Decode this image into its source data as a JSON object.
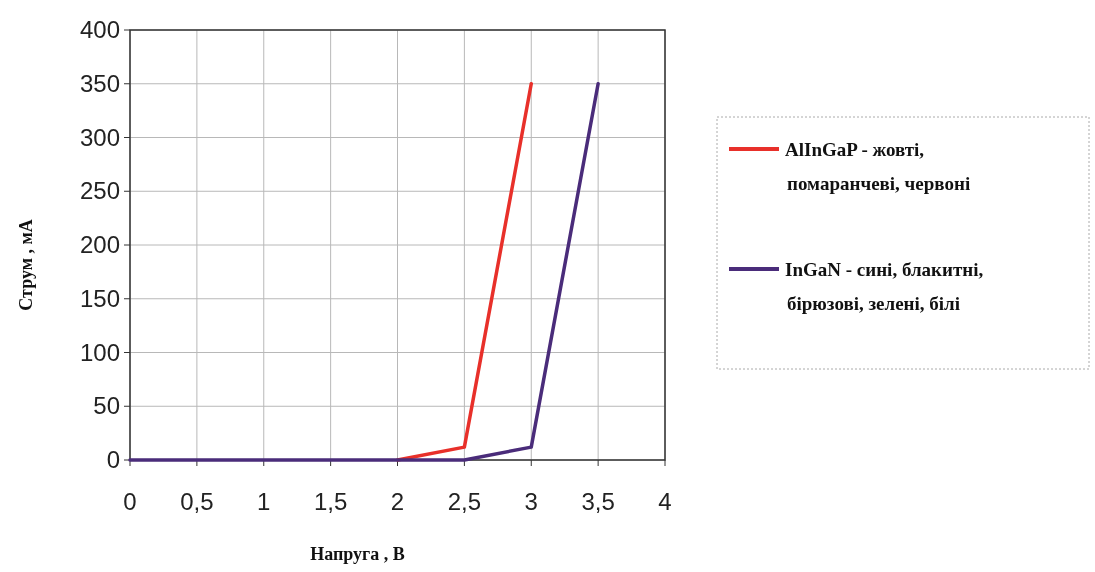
{
  "chart_data": {
    "type": "line",
    "xlabel": "Напруга , В",
    "ylabel": "Струм , мА",
    "xlim": [
      0,
      4
    ],
    "ylim": [
      0,
      400
    ],
    "xticks": [
      0,
      {
        "value": 0.5,
        "label": "0,5"
      },
      1,
      {
        "value": 1.5,
        "label": "1,5"
      },
      2,
      {
        "value": 2.5,
        "label": "2,5"
      },
      3,
      {
        "value": 3.5,
        "label": "3,5"
      },
      4
    ],
    "yticks": [
      0,
      50,
      100,
      150,
      200,
      250,
      300,
      350,
      400
    ],
    "grid": true,
    "legend": "right",
    "marker": "none",
    "line_style": "solid",
    "series": [
      {
        "name": "AlInGaP - жовті, помаранчеві, червоні",
        "color": "#e8302a",
        "x": [
          2,
          2.5,
          3
        ],
        "values": [
          0,
          12,
          350
        ]
      },
      {
        "name": "InGaN - сині, блакитні, бірюзові, зелені, білі",
        "color": "#4a2c7a",
        "x": [
          0,
          0.5,
          1,
          1.5,
          2,
          2.5,
          3,
          3.5
        ],
        "values": [
          0,
          0,
          0,
          0,
          0,
          0,
          12,
          350
        ]
      }
    ]
  }
}
